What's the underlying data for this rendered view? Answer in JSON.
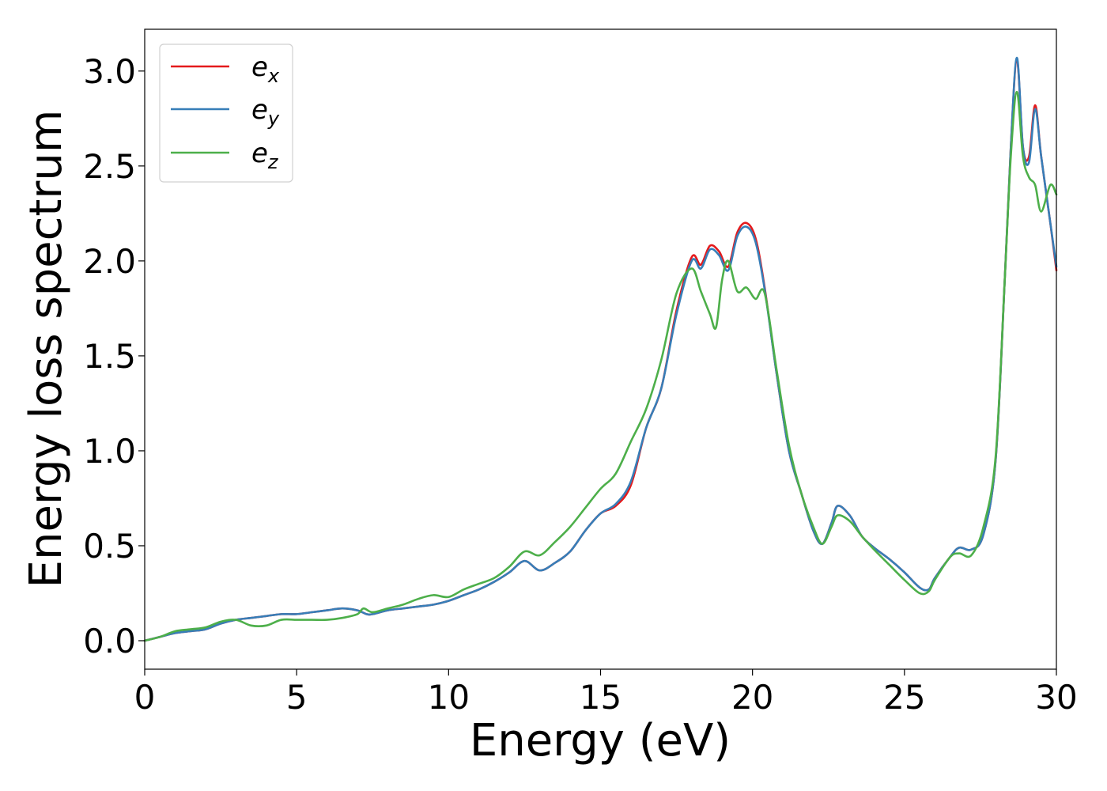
{
  "chart_data": {
    "type": "line",
    "xlabel": "Energy (eV)",
    "ylabel": "Energy loss spectrum",
    "xlim": [
      0,
      30
    ],
    "ylim": [
      -0.15,
      3.22
    ],
    "xticks": [
      0,
      5,
      10,
      15,
      20,
      25,
      30
    ],
    "xtick_labels": [
      "0",
      "5",
      "10",
      "15",
      "20",
      "25",
      "30"
    ],
    "yticks": [
      0.0,
      0.5,
      1.0,
      1.5,
      2.0,
      2.5,
      3.0
    ],
    "ytick_labels": [
      "0.0",
      "0.5",
      "1.0",
      "1.5",
      "2.0",
      "2.5",
      "3.0"
    ],
    "grid": false,
    "legend_position": "top-left",
    "series": [
      {
        "name": "e_x",
        "legend_main": "e",
        "legend_sub": "x",
        "color": "#e41a1c",
        "points": [
          [
            0,
            0
          ],
          [
            0.5,
            0.02
          ],
          [
            1,
            0.04
          ],
          [
            1.5,
            0.05
          ],
          [
            2,
            0.06
          ],
          [
            2.5,
            0.09
          ],
          [
            3,
            0.11
          ],
          [
            3.5,
            0.12
          ],
          [
            4,
            0.13
          ],
          [
            4.5,
            0.14
          ],
          [
            5,
            0.14
          ],
          [
            5.5,
            0.15
          ],
          [
            6,
            0.16
          ],
          [
            6.5,
            0.17
          ],
          [
            7,
            0.16
          ],
          [
            7.3,
            0.14
          ],
          [
            7.5,
            0.14
          ],
          [
            8,
            0.16
          ],
          [
            8.5,
            0.17
          ],
          [
            9,
            0.18
          ],
          [
            9.5,
            0.19
          ],
          [
            10,
            0.21
          ],
          [
            10.5,
            0.24
          ],
          [
            11,
            0.27
          ],
          [
            11.5,
            0.31
          ],
          [
            12,
            0.36
          ],
          [
            12.5,
            0.42
          ],
          [
            13,
            0.37
          ],
          [
            13.5,
            0.41
          ],
          [
            14,
            0.47
          ],
          [
            14.5,
            0.58
          ],
          [
            15,
            0.67
          ],
          [
            15.5,
            0.71
          ],
          [
            16,
            0.82
          ],
          [
            16.5,
            1.12
          ],
          [
            17,
            1.33
          ],
          [
            17.5,
            1.74
          ],
          [
            18,
            2.02
          ],
          [
            18.3,
            1.98
          ],
          [
            18.6,
            2.08
          ],
          [
            18.9,
            2.05
          ],
          [
            19.2,
            1.97
          ],
          [
            19.5,
            2.15
          ],
          [
            19.8,
            2.2
          ],
          [
            20.1,
            2.12
          ],
          [
            20.4,
            1.86
          ],
          [
            20.8,
            1.4
          ],
          [
            21.2,
            1.0
          ],
          [
            21.6,
            0.78
          ],
          [
            22,
            0.58
          ],
          [
            22.3,
            0.51
          ],
          [
            22.6,
            0.62
          ],
          [
            22.8,
            0.71
          ],
          [
            23.2,
            0.66
          ],
          [
            23.6,
            0.55
          ],
          [
            24,
            0.49
          ],
          [
            24.5,
            0.43
          ],
          [
            25,
            0.36
          ],
          [
            25.5,
            0.28
          ],
          [
            25.8,
            0.27
          ],
          [
            26,
            0.33
          ],
          [
            26.5,
            0.44
          ],
          [
            26.8,
            0.49
          ],
          [
            27.2,
            0.48
          ],
          [
            27.6,
            0.56
          ],
          [
            28,
            0.95
          ],
          [
            28.3,
            1.9
          ],
          [
            28.5,
            2.6
          ],
          [
            28.7,
            3.06
          ],
          [
            28.9,
            2.6
          ],
          [
            29.1,
            2.55
          ],
          [
            29.3,
            2.82
          ],
          [
            29.5,
            2.55
          ],
          [
            29.8,
            2.2
          ],
          [
            30,
            1.95
          ]
        ]
      },
      {
        "name": "e_y",
        "legend_main": "e",
        "legend_sub": "y",
        "color": "#377eb8",
        "points": [
          [
            0,
            0
          ],
          [
            0.5,
            0.02
          ],
          [
            1,
            0.04
          ],
          [
            1.5,
            0.05
          ],
          [
            2,
            0.06
          ],
          [
            2.5,
            0.09
          ],
          [
            3,
            0.11
          ],
          [
            3.5,
            0.12
          ],
          [
            4,
            0.13
          ],
          [
            4.5,
            0.14
          ],
          [
            5,
            0.14
          ],
          [
            5.5,
            0.15
          ],
          [
            6,
            0.16
          ],
          [
            6.5,
            0.17
          ],
          [
            7,
            0.16
          ],
          [
            7.3,
            0.14
          ],
          [
            7.5,
            0.14
          ],
          [
            8,
            0.16
          ],
          [
            8.5,
            0.17
          ],
          [
            9,
            0.18
          ],
          [
            9.5,
            0.19
          ],
          [
            10,
            0.21
          ],
          [
            10.5,
            0.24
          ],
          [
            11,
            0.27
          ],
          [
            11.5,
            0.31
          ],
          [
            12,
            0.36
          ],
          [
            12.5,
            0.42
          ],
          [
            13,
            0.37
          ],
          [
            13.5,
            0.41
          ],
          [
            14,
            0.47
          ],
          [
            14.5,
            0.58
          ],
          [
            15,
            0.67
          ],
          [
            15.5,
            0.72
          ],
          [
            16,
            0.84
          ],
          [
            16.5,
            1.12
          ],
          [
            17,
            1.33
          ],
          [
            17.5,
            1.72
          ],
          [
            18,
            2.0
          ],
          [
            18.3,
            1.96
          ],
          [
            18.6,
            2.06
          ],
          [
            18.9,
            2.03
          ],
          [
            19.2,
            1.95
          ],
          [
            19.5,
            2.13
          ],
          [
            19.8,
            2.18
          ],
          [
            20.1,
            2.1
          ],
          [
            20.4,
            1.85
          ],
          [
            20.8,
            1.4
          ],
          [
            21.2,
            1.0
          ],
          [
            21.6,
            0.78
          ],
          [
            22,
            0.58
          ],
          [
            22.3,
            0.51
          ],
          [
            22.6,
            0.62
          ],
          [
            22.8,
            0.71
          ],
          [
            23.2,
            0.66
          ],
          [
            23.6,
            0.55
          ],
          [
            24,
            0.49
          ],
          [
            24.5,
            0.43
          ],
          [
            25,
            0.36
          ],
          [
            25.5,
            0.28
          ],
          [
            25.8,
            0.27
          ],
          [
            26,
            0.33
          ],
          [
            26.5,
            0.44
          ],
          [
            26.8,
            0.49
          ],
          [
            27.2,
            0.48
          ],
          [
            27.6,
            0.56
          ],
          [
            28,
            0.95
          ],
          [
            28.3,
            1.9
          ],
          [
            28.5,
            2.6
          ],
          [
            28.7,
            3.07
          ],
          [
            28.9,
            2.6
          ],
          [
            29.1,
            2.52
          ],
          [
            29.3,
            2.8
          ],
          [
            29.5,
            2.55
          ],
          [
            29.8,
            2.2
          ],
          [
            30,
            1.97
          ]
        ]
      },
      {
        "name": "e_z",
        "legend_main": "e",
        "legend_sub": "z",
        "color": "#4daf4a",
        "points": [
          [
            0,
            0
          ],
          [
            0.5,
            0.02
          ],
          [
            1,
            0.05
          ],
          [
            1.5,
            0.06
          ],
          [
            2,
            0.07
          ],
          [
            2.5,
            0.1
          ],
          [
            3,
            0.11
          ],
          [
            3.5,
            0.08
          ],
          [
            4,
            0.08
          ],
          [
            4.5,
            0.11
          ],
          [
            5,
            0.11
          ],
          [
            5.5,
            0.11
          ],
          [
            6,
            0.11
          ],
          [
            6.5,
            0.12
          ],
          [
            7,
            0.14
          ],
          [
            7.2,
            0.17
          ],
          [
            7.5,
            0.15
          ],
          [
            8,
            0.17
          ],
          [
            8.5,
            0.19
          ],
          [
            9,
            0.22
          ],
          [
            9.5,
            0.24
          ],
          [
            10,
            0.23
          ],
          [
            10.5,
            0.27
          ],
          [
            11,
            0.3
          ],
          [
            11.5,
            0.33
          ],
          [
            12,
            0.39
          ],
          [
            12.5,
            0.47
          ],
          [
            13,
            0.45
          ],
          [
            13.5,
            0.52
          ],
          [
            14,
            0.6
          ],
          [
            14.5,
            0.7
          ],
          [
            15,
            0.8
          ],
          [
            15.5,
            0.88
          ],
          [
            16,
            1.05
          ],
          [
            16.5,
            1.22
          ],
          [
            17,
            1.48
          ],
          [
            17.5,
            1.83
          ],
          [
            18,
            1.96
          ],
          [
            18.3,
            1.84
          ],
          [
            18.6,
            1.72
          ],
          [
            18.8,
            1.65
          ],
          [
            19,
            1.9
          ],
          [
            19.2,
            2.0
          ],
          [
            19.5,
            1.84
          ],
          [
            19.8,
            1.86
          ],
          [
            20.1,
            1.8
          ],
          [
            20.4,
            1.83
          ],
          [
            20.8,
            1.42
          ],
          [
            21.2,
            1.03
          ],
          [
            21.6,
            0.78
          ],
          [
            22,
            0.6
          ],
          [
            22.3,
            0.51
          ],
          [
            22.6,
            0.6
          ],
          [
            22.8,
            0.66
          ],
          [
            23.2,
            0.63
          ],
          [
            23.6,
            0.55
          ],
          [
            24,
            0.48
          ],
          [
            24.5,
            0.4
          ],
          [
            25,
            0.32
          ],
          [
            25.5,
            0.25
          ],
          [
            25.8,
            0.26
          ],
          [
            26,
            0.32
          ],
          [
            26.5,
            0.44
          ],
          [
            26.8,
            0.46
          ],
          [
            27.2,
            0.45
          ],
          [
            27.6,
            0.6
          ],
          [
            28,
            0.97
          ],
          [
            28.3,
            1.9
          ],
          [
            28.5,
            2.55
          ],
          [
            28.7,
            2.89
          ],
          [
            28.9,
            2.55
          ],
          [
            29.1,
            2.44
          ],
          [
            29.3,
            2.4
          ],
          [
            29.5,
            2.26
          ],
          [
            29.8,
            2.4
          ],
          [
            30,
            2.35
          ]
        ]
      }
    ]
  }
}
